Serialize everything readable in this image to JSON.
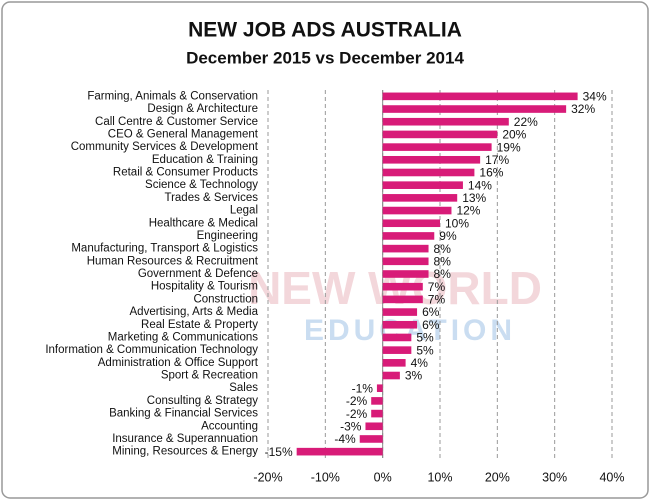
{
  "chart_data": {
    "type": "hbar",
    "title": "NEW JOB ADS AUSTRALIA",
    "subtitle": "December 2015 vs December 2014",
    "watermark": [
      "NEW WORLD",
      "EDUCATION"
    ],
    "categories": [
      "Farming, Animals & Conservation",
      "Design & Architecture",
      "Call Centre & Customer Service",
      "CEO & General Management",
      "Community Services & Development",
      "Education & Training",
      "Retail & Consumer Products",
      "Science & Technology",
      "Trades & Services",
      "Legal",
      "Healthcare & Medical",
      "Engineering",
      "Manufacturing, Transport & Logistics",
      "Human Resources & Recruitment",
      "Government & Defence",
      "Hospitality & Tourism",
      "Construction",
      "Advertising, Arts & Media",
      "Real Estate & Property",
      "Marketing & Communications",
      "Information & Communication Technology",
      "Administration & Office Support",
      "Sport & Recreation",
      "Sales",
      "Consulting & Strategy",
      "Banking & Financial Services",
      "Accounting",
      "Insurance & Superannuation",
      "Mining, Resources & Energy"
    ],
    "values": [
      34,
      32,
      22,
      20,
      19,
      17,
      16,
      14,
      13,
      12,
      10,
      9,
      8,
      8,
      8,
      7,
      7,
      6,
      6,
      5,
      5,
      4,
      3,
      -1,
      -2,
      -2,
      -3,
      -4,
      -15
    ],
    "value_labels": [
      "34%",
      "32%",
      "22%",
      "20%",
      "19%",
      "17%",
      "16%",
      "14%",
      "13%",
      "12%",
      "10%",
      "9%",
      "8%",
      "8%",
      "8%",
      "7%",
      "7%",
      "6%",
      "6%",
      "5%",
      "5%",
      "4%",
      "3%",
      "-1%",
      "-2%",
      "-2%",
      "-3%",
      "-4%",
      "-15%"
    ],
    "color": "#d81b78",
    "xlim": [
      -20,
      40
    ],
    "xticks": [
      {
        "value": -20,
        "label": "-20%"
      },
      {
        "value": -10,
        "label": "-10%"
      },
      {
        "value": 0,
        "label": "0%"
      },
      {
        "value": 10,
        "label": "10%"
      },
      {
        "value": 20,
        "label": "20%"
      },
      {
        "value": 30,
        "label": "30%"
      },
      {
        "value": 40,
        "label": "40%"
      }
    ],
    "grid": true
  }
}
